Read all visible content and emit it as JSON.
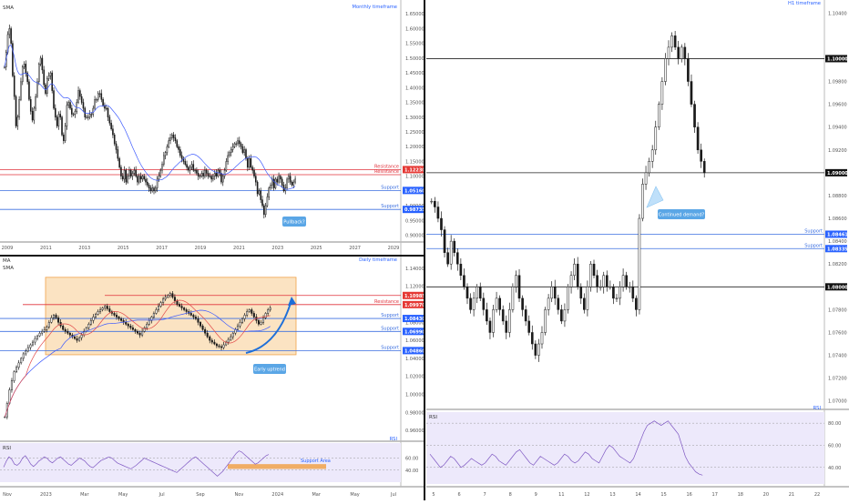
{
  "colors": {
    "background": "#ffffff",
    "divider": "#111111",
    "candle": "#1a1a1a",
    "support_line": "#3b6fe0",
    "resistance_line": "#e0303a",
    "level_line": "#222222",
    "ma_blue": "#3d5afe",
    "ma_red": "#e24a4a",
    "zone_fill": "#fbe3c2",
    "zone_stroke": "#f0a24a",
    "rsi_fill": "#ede9fb",
    "rsi_line": "#7e57c2",
    "rsi_signal": "#f2c94c",
    "callout_fill": "#5aa6e6",
    "axis_text": "#555555",
    "label_blue": "#2962ff",
    "label_red": "#e53935",
    "label_black": "#111111",
    "arrow_blue": "#1e6fd9",
    "support_area": "#f0a24a"
  },
  "chart_data": [
    {
      "panel": "monthly",
      "type": "candlestick",
      "title": "Monthly timeframe",
      "legend": [
        "SMA"
      ],
      "y_ticks": [
        "1.65000",
        "1.60000",
        "1.55000",
        "1.50000",
        "1.45000",
        "1.40000",
        "1.35000",
        "1.30000",
        "1.25000",
        "1.20000",
        "1.15000",
        "1.10000",
        "1.05000",
        "1.00000",
        "0.95000",
        "0.90000"
      ],
      "x_ticks": [
        "2009",
        "2011",
        "2013",
        "2015",
        "2017",
        "2019",
        "2021",
        "2023",
        "2025",
        "2027",
        "2029"
      ],
      "ylim": [
        0.88,
        1.66
      ],
      "xlim": [
        2008.0,
        2030.0
      ],
      "closes": [
        1.47,
        1.52,
        1.58,
        1.6,
        1.55,
        1.44,
        1.37,
        1.27,
        1.3,
        1.36,
        1.42,
        1.47,
        1.48,
        1.45,
        1.42,
        1.36,
        1.32,
        1.29,
        1.33,
        1.37,
        1.42,
        1.48,
        1.5,
        1.46,
        1.41,
        1.38,
        1.43,
        1.44,
        1.45,
        1.39,
        1.33,
        1.3,
        1.27,
        1.31,
        1.3,
        1.24,
        1.22,
        1.27,
        1.34,
        1.35,
        1.33,
        1.31,
        1.31,
        1.32,
        1.35,
        1.39,
        1.37,
        1.35,
        1.33,
        1.3,
        1.3,
        1.3,
        1.31,
        1.31,
        1.33,
        1.36,
        1.36,
        1.38,
        1.38,
        1.36,
        1.34,
        1.33,
        1.33,
        1.3,
        1.28,
        1.26,
        1.24,
        1.21,
        1.19,
        1.16,
        1.13,
        1.1,
        1.09,
        1.12,
        1.08,
        1.1,
        1.12,
        1.1,
        1.11,
        1.12,
        1.1,
        1.08,
        1.1,
        1.09,
        1.1,
        1.09,
        1.08,
        1.07,
        1.06,
        1.05,
        1.06,
        1.05,
        1.06,
        1.09,
        1.1,
        1.12,
        1.14,
        1.17,
        1.18,
        1.2,
        1.22,
        1.23,
        1.24,
        1.23,
        1.22,
        1.2,
        1.19,
        1.17,
        1.16,
        1.15,
        1.14,
        1.13,
        1.12,
        1.13,
        1.14,
        1.12,
        1.12,
        1.11,
        1.1,
        1.1,
        1.11,
        1.1,
        1.12,
        1.11,
        1.1,
        1.1,
        1.09,
        1.1,
        1.11,
        1.1,
        1.12,
        1.11,
        1.08,
        1.1,
        1.12,
        1.15,
        1.17,
        1.18,
        1.19,
        1.2,
        1.21,
        1.21,
        1.22,
        1.21,
        1.2,
        1.18,
        1.19,
        1.16,
        1.13,
        1.16,
        1.13,
        1.12,
        1.1,
        1.08,
        1.04,
        1.05,
        1.02,
        1.0,
        0.97,
        1.0,
        1.03,
        1.06,
        1.07,
        1.09,
        1.06,
        1.09,
        1.08,
        1.1,
        1.09,
        1.07,
        1.05,
        1.06,
        1.09,
        1.1,
        1.08,
        1.07,
        1.08,
        1.09
      ],
      "levels": [
        {
          "label": "Resistance",
          "value_label": "1.12230",
          "kind": "resistance",
          "value": 1.1223
        },
        {
          "label": "Resistance",
          "value_label": "",
          "kind": "resistance",
          "value": 1.105
        },
        {
          "label": "Support",
          "value_label": "1.05160",
          "kind": "support",
          "value": 1.0516
        },
        {
          "label": "Support",
          "value_label": "0.98735",
          "kind": "support",
          "value": 0.98735
        }
      ],
      "callouts": [
        {
          "text": "Pullback?"
        }
      ]
    },
    {
      "panel": "daily",
      "type": "candlestick",
      "title": "Daily timeframe",
      "legend": [
        "MA",
        "SMA"
      ],
      "y_ticks": [
        "1.14000",
        "1.12000",
        "1.10000",
        "1.08000",
        "1.06000",
        "1.04000",
        "1.02000",
        "1.00000",
        "0.98000",
        "0.96000"
      ],
      "x_ticks": [
        "Nov",
        "2023",
        "Mar",
        "May",
        "Jul",
        "Sep",
        "Nov",
        "2024",
        "Mar",
        "May",
        "Jul"
      ],
      "ylim": [
        0.955,
        1.145
      ],
      "closes": [
        0.975,
        0.99,
        1.005,
        1.015,
        1.025,
        1.03,
        1.035,
        1.04,
        1.045,
        1.048,
        1.052,
        1.055,
        1.058,
        1.062,
        1.065,
        1.068,
        1.07,
        1.072,
        1.075,
        1.08,
        1.085,
        1.088,
        1.085,
        1.08,
        1.076,
        1.072,
        1.07,
        1.068,
        1.066,
        1.064,
        1.062,
        1.06,
        1.063,
        1.066,
        1.07,
        1.074,
        1.078,
        1.082,
        1.086,
        1.089,
        1.092,
        1.094,
        1.096,
        1.098,
        1.095,
        1.092,
        1.09,
        1.088,
        1.086,
        1.084,
        1.082,
        1.08,
        1.078,
        1.076,
        1.074,
        1.072,
        1.07,
        1.068,
        1.066,
        1.07,
        1.074,
        1.078,
        1.082,
        1.086,
        1.09,
        1.094,
        1.098,
        1.102,
        1.106,
        1.108,
        1.11,
        1.112,
        1.108,
        1.104,
        1.1,
        1.098,
        1.096,
        1.094,
        1.092,
        1.09,
        1.088,
        1.086,
        1.084,
        1.08,
        1.076,
        1.072,
        1.068,
        1.064,
        1.06,
        1.058,
        1.056,
        1.054,
        1.053,
        1.052,
        1.055,
        1.058,
        1.061,
        1.064,
        1.068,
        1.072,
        1.076,
        1.08,
        1.084,
        1.088,
        1.092,
        1.094,
        1.09,
        1.086,
        1.082,
        1.078,
        1.08,
        1.085,
        1.09,
        1.094,
        1.096
      ],
      "levels": [
        {
          "label": "",
          "value_label": "1.10985",
          "kind": "resistance",
          "value": 1.10985
        },
        {
          "label": "Resistance",
          "value_label": "1.09970",
          "kind": "resistance",
          "value": 1.0997
        },
        {
          "label": "Support",
          "value_label": "1.08430",
          "kind": "support",
          "value": 1.0843
        },
        {
          "label": "Support",
          "value_label": "1.06990",
          "kind": "support",
          "value": 1.0699
        },
        {
          "label": "Support",
          "value_label": "1.04860",
          "kind": "support",
          "value": 1.0486
        }
      ],
      "zone": {
        "y_top": 1.13,
        "y_bottom": 1.044
      },
      "callouts": [
        {
          "text": "Early uptrend"
        }
      ]
    },
    {
      "panel": "daily_rsi",
      "type": "line",
      "title": "RSI",
      "y_ticks": [
        "60.00",
        "40.00"
      ],
      "ylim": [
        20,
        85
      ],
      "values": [
        45,
        55,
        62,
        58,
        50,
        48,
        52,
        60,
        64,
        58,
        50,
        46,
        50,
        55,
        58,
        62,
        60,
        55,
        52,
        56,
        60,
        62,
        58,
        54,
        50,
        48,
        52,
        56,
        60,
        58,
        55,
        50,
        46,
        44,
        48,
        52,
        56,
        58,
        60,
        62,
        60,
        56,
        52,
        50,
        48,
        46,
        44,
        42,
        45,
        48,
        52,
        56,
        60,
        58,
        56,
        54,
        52,
        50,
        48,
        46,
        44,
        42,
        40,
        38,
        36,
        40,
        44,
        48,
        52,
        56,
        60,
        62,
        58,
        54,
        50,
        46,
        42,
        38,
        34,
        30,
        34,
        38,
        44,
        50,
        56,
        62,
        68,
        72,
        70,
        66,
        62,
        58,
        54,
        50,
        52,
        56,
        60,
        64,
        66
      ],
      "support_area": {
        "label": "Support Area",
        "y_top": 50,
        "y_bottom": 42
      }
    },
    {
      "panel": "h1",
      "type": "candlestick",
      "title": "H1 timeframe",
      "y_ticks": [
        "1.10400",
        "1.10000",
        "1.09800",
        "1.09600",
        "1.09400",
        "1.09200",
        "1.09000",
        "1.08800",
        "1.08600",
        "1.08400",
        "1.08200",
        "1.08000",
        "1.07800",
        "1.07600",
        "1.07400",
        "1.07200",
        "1.07000"
      ],
      "x_ticks": [
        "5",
        "6",
        "7",
        "8",
        "9",
        "11",
        "12",
        "13",
        "14",
        "15",
        "16",
        "17",
        "18",
        "20",
        "21",
        "22"
      ],
      "ylim": [
        1.0695,
        1.1045
      ],
      "closes": [
        1.0875,
        1.087,
        1.086,
        1.085,
        1.083,
        1.082,
        1.084,
        1.083,
        1.082,
        1.081,
        1.08,
        1.079,
        1.078,
        1.079,
        1.08,
        1.079,
        1.078,
        1.077,
        1.076,
        1.078,
        1.079,
        1.078,
        1.077,
        1.076,
        1.078,
        1.08,
        1.081,
        1.079,
        1.078,
        1.077,
        1.076,
        1.075,
        1.074,
        1.075,
        1.076,
        1.078,
        1.079,
        1.08,
        1.079,
        1.078,
        1.077,
        1.078,
        1.08,
        1.081,
        1.082,
        1.08,
        1.079,
        1.078,
        1.08,
        1.082,
        1.081,
        1.08,
        1.08,
        1.081,
        1.08,
        1.08,
        1.079,
        1.079,
        1.08,
        1.081,
        1.08,
        1.08,
        1.079,
        1.078,
        1.086,
        1.089,
        1.09,
        1.091,
        1.092,
        1.094,
        1.096,
        1.098,
        1.1,
        1.101,
        1.102,
        1.101,
        1.1,
        1.101,
        1.1,
        1.098,
        1.096,
        1.094,
        1.092,
        1.091,
        1.09
      ],
      "levels": [
        {
          "label": "",
          "value_label": "1.10000",
          "kind": "level",
          "value": 1.1
        },
        {
          "label": "",
          "value_label": "1.09000",
          "kind": "level",
          "value": 1.09
        },
        {
          "label": "Support",
          "value_label": "1.08461",
          "kind": "support",
          "value": 1.08461
        },
        {
          "label": "Support",
          "value_label": "1.08335",
          "kind": "support",
          "value": 1.08335
        },
        {
          "label": "",
          "value_label": "1.08000",
          "kind": "level",
          "value": 1.08
        }
      ],
      "callouts": [
        {
          "text": "Continued demand?"
        }
      ]
    },
    {
      "panel": "h1_rsi",
      "type": "line",
      "title": "RSI",
      "y_ticks": [
        "80.00",
        "60.00",
        "40.00"
      ],
      "ylim": [
        25,
        90
      ],
      "values": [
        52,
        48,
        44,
        40,
        42,
        46,
        50,
        48,
        44,
        40,
        42,
        45,
        48,
        46,
        44,
        42,
        44,
        48,
        52,
        50,
        46,
        44,
        42,
        46,
        50,
        54,
        56,
        52,
        48,
        44,
        42,
        46,
        50,
        48,
        46,
        44,
        42,
        44,
        48,
        52,
        50,
        46,
        44,
        46,
        50,
        54,
        52,
        48,
        46,
        44,
        50,
        56,
        60,
        58,
        54,
        50,
        48,
        46,
        44,
        48,
        56,
        64,
        72,
        78,
        80,
        82,
        80,
        78,
        80,
        82,
        78,
        74,
        70,
        60,
        50,
        44,
        40,
        36,
        34,
        33
      ]
    }
  ]
}
